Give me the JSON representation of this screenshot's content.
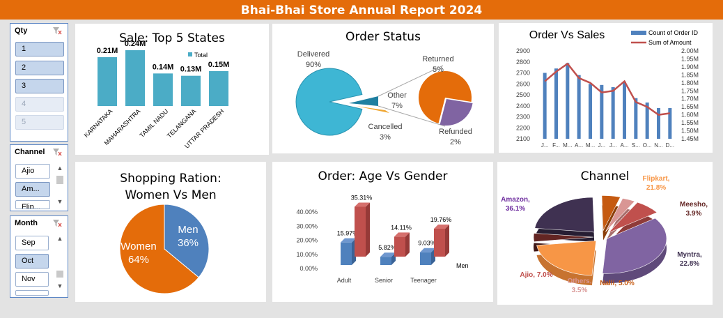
{
  "title": "Bhai-Bhai Store Annual Report 2024",
  "slicers": {
    "qty": {
      "label": "Qty",
      "items": [
        "1",
        "2",
        "3",
        "4",
        "5"
      ]
    },
    "channel": {
      "label": "Channel",
      "items": [
        "Ajio",
        "Am...",
        "Flip..."
      ]
    },
    "month": {
      "label": "Month",
      "items": [
        "Sep",
        "Oct",
        "Nov"
      ]
    }
  },
  "colors": {
    "banner": "#e46c0a",
    "slicer_selected": "#c5d6ec",
    "bar_teal": "#4bacc6",
    "bar_blue": "#4f81bd",
    "bar_red": "#c0504d",
    "orange": "#e46c0a"
  },
  "chart_data": [
    {
      "type": "bar",
      "title": "Sale: Top 5 States",
      "legend": "Total",
      "legend_position": "top-right",
      "categories": [
        "KARNATAKA",
        "MAHARASHTRA",
        "TAMIL NADU",
        "TELANGANA",
        "UTTAR PRADESH"
      ],
      "values": [
        0.21,
        0.24,
        0.14,
        0.13,
        0.15
      ],
      "data_labels": [
        "0.21M",
        "0.24M",
        "0.14M",
        "0.13M",
        "0.15M"
      ],
      "unit": "M"
    },
    {
      "type": "pie",
      "title": "Order Status",
      "slices": [
        {
          "name": "Delivered",
          "pct_label": "90%",
          "value": 90
        },
        {
          "name": "Cancelled",
          "pct_label": "3%",
          "value": 3
        },
        {
          "name": "Returned",
          "pct_label": "5%",
          "value": 5
        },
        {
          "name": "Refunded",
          "pct_label": "2%",
          "value": 2
        }
      ],
      "other": {
        "name": "Other",
        "pct_label": "7%",
        "value": 7
      }
    },
    {
      "type": "bar",
      "title": "Order Vs Sales",
      "legend_position": "top-right",
      "categories": [
        "J...",
        "F...",
        "M...",
        "A...",
        "M...",
        "J...",
        "J...",
        "A...",
        "S...",
        "O...",
        "N...",
        "D..."
      ],
      "series": [
        {
          "name": "Count of Order ID",
          "values": [
            2700,
            2740,
            2790,
            2680,
            2600,
            2590,
            2570,
            2620,
            2470,
            2430,
            2380,
            2380
          ],
          "axis": "left"
        },
        {
          "name": "Sum of Amount",
          "values": [
            1.81,
            1.87,
            1.92,
            1.83,
            1.8,
            1.74,
            1.75,
            1.81,
            1.68,
            1.65,
            1.6,
            1.61
          ],
          "axis": "right"
        }
      ],
      "y_ticks": [
        "2900",
        "2800",
        "2700",
        "2600",
        "2500",
        "2400",
        "2300",
        "2200",
        "2100"
      ],
      "y2_ticks": [
        "2.00M",
        "1.95M",
        "1.90M",
        "1.85M",
        "1.80M",
        "1.75M",
        "1.70M",
        "1.65M",
        "1.60M",
        "1.55M",
        "1.50M",
        "1.45M"
      ],
      "ylim": [
        2100,
        2900
      ],
      "y2lim": [
        1.45,
        2.0
      ]
    },
    {
      "type": "pie",
      "title": "Shopping Ration: Women Vs Men",
      "slices": [
        {
          "name": "Men",
          "pct_label": "36%",
          "value": 36
        },
        {
          "name": "Women",
          "pct_label": "64%",
          "value": 64
        }
      ]
    },
    {
      "type": "bar",
      "title": "Order: Age Vs Gender",
      "categories": [
        "Adult",
        "Senior",
        "Teenager"
      ],
      "series": [
        {
          "name": "",
          "values": [
            15.97,
            5.82,
            9.03
          ],
          "labels": [
            "15.97%",
            "5.82%",
            "9.03%"
          ]
        },
        {
          "name": "Men",
          "values": [
            35.31,
            14.11,
            19.76
          ],
          "labels": [
            "35.31%",
            "14.11%",
            "19.76%"
          ]
        }
      ],
      "y_ticks": [
        "40.00%",
        "30.00%",
        "20.00%",
        "10.00%",
        "0.00%"
      ],
      "ylim": [
        0,
        40
      ]
    },
    {
      "type": "pie",
      "title": "Channel",
      "slices": [
        {
          "name": "Amazon",
          "pct_label": "36.1%",
          "value": 36.1
        },
        {
          "name": "Flipkart",
          "pct_label": "21.8%",
          "value": 21.8
        },
        {
          "name": "Meesho",
          "pct_label": "3.9%",
          "value": 3.9
        },
        {
          "name": "Myntra",
          "pct_label": "22.8%",
          "value": 22.8
        },
        {
          "name": "Nalli",
          "pct_label": "5.0%",
          "value": 5.0
        },
        {
          "name": "Others",
          "pct_label": "3.5%",
          "value": 3.5
        },
        {
          "name": "Ajio",
          "pct_label": "7.0%",
          "value": 7.0
        }
      ]
    }
  ]
}
